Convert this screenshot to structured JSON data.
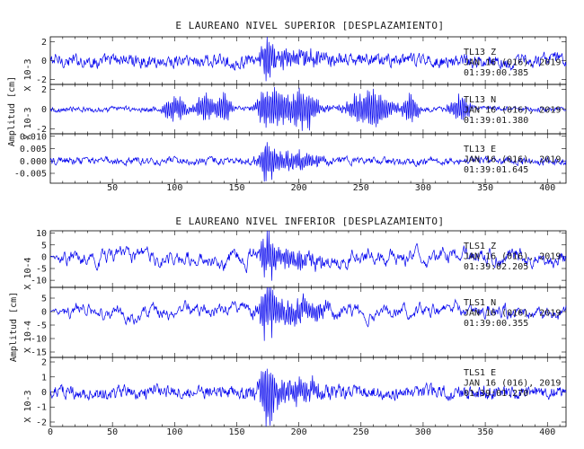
{
  "chart_data": [
    {
      "type": "line",
      "title": "E LAUREANO NIVEL SUPERIOR [DESPLAZAMIENTO]",
      "ylabel": "Amplitud [cm]",
      "x_ticks": [
        "50",
        "100",
        "150",
        "200",
        "250",
        "300",
        "350",
        "400"
      ],
      "xlim": [
        0,
        415
      ],
      "panels": [
        {
          "name": "TL13 Z",
          "annotation": [
            "TL13 Z",
            "JAN 16 (016), 2019",
            "01:39:00.385"
          ],
          "scale_label": "X 10-3",
          "y_ticks": [
            "2",
            "0",
            "-2"
          ],
          "ylim": [
            -2.5,
            2.5
          ],
          "amp": 0.55,
          "event_amp": 2.0,
          "envelope": "event",
          "color": "#0000ee"
        },
        {
          "name": "TL13 N",
          "annotation": [
            "TL13 N",
            "JAN 16 (016), 2019",
            "01:39:01.380"
          ],
          "scale_label": "X 10-3",
          "y_ticks": [
            "2",
            "0",
            "-2"
          ],
          "ylim": [
            -2.5,
            2.5
          ],
          "amp": 0.6,
          "event_amp": 2.2,
          "envelope": "bursts",
          "color": "#0000ee"
        },
        {
          "name": "TL13 E",
          "annotation": [
            "TL13 E",
            "JAN 16 (016), 2019",
            "01:39:01.645"
          ],
          "scale_label": "",
          "y_ticks": [
            "0.010",
            "0.005",
            "0.000",
            "-0.005"
          ],
          "ylim": [
            -0.009,
            0.011
          ],
          "amp": 0.0012,
          "event_amp": 0.009,
          "envelope": "event",
          "color": "#0000ee"
        }
      ]
    },
    {
      "type": "line",
      "title": "E LAUREANO NIVEL INFERIOR [DESPLAZAMIENTO]",
      "ylabel": "Amplitud [cm]",
      "x_ticks": [
        "0",
        "50",
        "100",
        "150",
        "200",
        "250",
        "300",
        "350",
        "400"
      ],
      "xlim": [
        0,
        415
      ],
      "panels": [
        {
          "name": "TLS1 Z",
          "annotation": [
            "TLS1 Z",
            "JAN 16 (016), 2019",
            "01:39:02.205"
          ],
          "scale_label": "X 10-4",
          "y_ticks": [
            "10",
            "5",
            "0",
            "-5",
            "-10"
          ],
          "ylim": [
            -13,
            11
          ],
          "amp": 4.5,
          "event_amp": 10,
          "envelope": "low",
          "color": "#0000ee"
        },
        {
          "name": "TLS1 N",
          "annotation": [
            "TLS1 N",
            "JAN 16 (016), 2019",
            "01:39:00.355"
          ],
          "scale_label": "X 10-4",
          "y_ticks": [
            "5",
            "0",
            "-5",
            "-10",
            "-15"
          ],
          "ylim": [
            -17,
            9
          ],
          "amp": 3.5,
          "event_amp": 12,
          "envelope": "low",
          "color": "#0000ee"
        },
        {
          "name": "TLS1 E",
          "annotation": [
            "TLS1 E",
            "JAN 16 (016), 2019",
            "01:39:01.270"
          ],
          "scale_label": "X 10-3",
          "y_ticks": [
            "2",
            "1",
            "0",
            "-1",
            "-2"
          ],
          "ylim": [
            -2.3,
            2.3
          ],
          "amp": 0.35,
          "event_amp": 2.0,
          "envelope": "event",
          "color": "#0000ee"
        }
      ]
    }
  ]
}
